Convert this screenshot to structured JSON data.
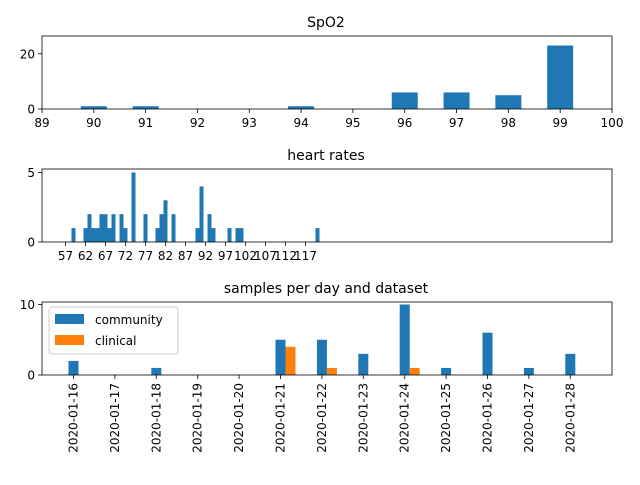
{
  "chart_data": [
    {
      "type": "bar",
      "title": "SpO2",
      "xlabel": "",
      "ylabel": "",
      "x": [
        90,
        91,
        94,
        96,
        97,
        98,
        99
      ],
      "values": [
        1,
        1,
        1,
        6,
        6,
        5,
        23
      ],
      "xlim": [
        89,
        100
      ],
      "ylim": [
        0,
        24
      ],
      "xticks": [
        "89",
        "90",
        "91",
        "92",
        "93",
        "94",
        "95",
        "96",
        "97",
        "98",
        "99",
        "100"
      ],
      "yticks": [
        "0",
        "20"
      ],
      "color": "#1f77b4",
      "grid": false
    },
    {
      "type": "bar",
      "title": "heart rates",
      "xlabel": "",
      "ylabel": "",
      "x": [
        58,
        61,
        62,
        63,
        64,
        65,
        66,
        67,
        68,
        70,
        71,
        73,
        76,
        79,
        80,
        81,
        83,
        89,
        90,
        92,
        93,
        97,
        99,
        100,
        119
      ],
      "values": [
        1,
        1,
        2,
        1,
        1,
        2,
        2,
        1,
        2,
        2,
        1,
        5,
        2,
        1,
        2,
        3,
        2,
        1,
        4,
        2,
        1,
        1,
        1,
        1,
        1
      ],
      "xticks": [
        "57",
        "62",
        "67",
        "72",
        "77",
        "82",
        "87",
        "92",
        "97",
        "102",
        "107",
        "112",
        "117"
      ],
      "yticks": [
        "0",
        "5"
      ],
      "color": "#1f77b4",
      "grid": false
    },
    {
      "type": "bar",
      "title": "samples per day and dataset",
      "xlabel": "",
      "ylabel": "",
      "categories": [
        "2020-01-16",
        "2020-01-17",
        "2020-01-18",
        "2020-01-19",
        "2020-01-20",
        "2020-01-21",
        "2020-01-22",
        "2020-01-23",
        "2020-01-24",
        "2020-01-25",
        "2020-01-26",
        "2020-01-27",
        "2020-01-28"
      ],
      "series": [
        {
          "name": "community",
          "color": "#1f77b4",
          "values": [
            2,
            0,
            1,
            0,
            0,
            5,
            5,
            3,
            10,
            1,
            6,
            1,
            3
          ]
        },
        {
          "name": "clinical",
          "color": "#ff7f0e",
          "values": [
            0,
            0,
            0,
            0,
            0,
            4,
            1,
            0,
            1,
            0,
            0,
            0,
            0
          ]
        }
      ],
      "yticks": [
        "0",
        "10"
      ],
      "legend": "top-left",
      "grid": false
    }
  ]
}
